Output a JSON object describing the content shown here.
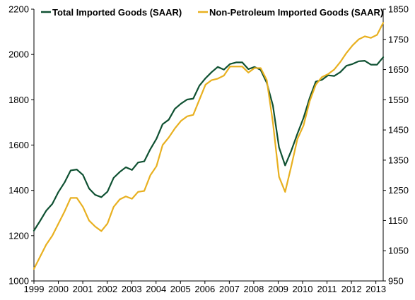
{
  "chart_data": {
    "type": "line",
    "legend_position": "top",
    "grid": false,
    "series": [
      {
        "name": "Total Imported Goods (SAAR)",
        "axis": "left",
        "color": "#0f5132",
        "values": [
          1222,
          1265,
          1310,
          1340,
          1393,
          1435,
          1488,
          1492,
          1468,
          1408,
          1380,
          1370,
          1394,
          1455,
          1481,
          1502,
          1490,
          1523,
          1528,
          1582,
          1628,
          1692,
          1712,
          1760,
          1783,
          1801,
          1805,
          1862,
          1895,
          1922,
          1945,
          1933,
          1958,
          1965,
          1965,
          1935,
          1945,
          1932,
          1875,
          1775,
          1590,
          1510,
          1575,
          1650,
          1720,
          1808,
          1880,
          1888,
          1908,
          1905,
          1922,
          1950,
          1958,
          1970,
          1972,
          1955,
          1955,
          1988
        ]
      },
      {
        "name": "Non-Petroleum Imported Goods (SAAR)",
        "axis": "right",
        "color": "#e8b020",
        "values": [
          990,
          1030,
          1070,
          1100,
          1140,
          1180,
          1225,
          1225,
          1195,
          1150,
          1130,
          1115,
          1140,
          1195,
          1220,
          1230,
          1222,
          1245,
          1248,
          1300,
          1330,
          1400,
          1425,
          1455,
          1480,
          1495,
          1500,
          1550,
          1600,
          1615,
          1620,
          1630,
          1660,
          1660,
          1660,
          1640,
          1655,
          1655,
          1615,
          1475,
          1295,
          1245,
          1330,
          1420,
          1465,
          1545,
          1600,
          1625,
          1635,
          1650,
          1675,
          1705,
          1730,
          1750,
          1760,
          1755,
          1765,
          1805
        ]
      }
    ],
    "x_start_year": 1999,
    "x_end_year": 2013.3,
    "xticks": [
      "1999",
      "2000",
      "2001",
      "2002",
      "2003",
      "2004",
      "2005",
      "2006",
      "2007",
      "2008",
      "2009",
      "2010",
      "2011",
      "2012",
      "2013"
    ],
    "y_left": {
      "min": 1000,
      "max": 2200,
      "ticks": [
        "1000",
        "1200",
        "1400",
        "1600",
        "1800",
        "2000",
        "2200"
      ]
    },
    "y_right": {
      "min": 950,
      "max": 1850,
      "ticks": [
        "950",
        "1050",
        "1150",
        "1250",
        "1350",
        "1450",
        "1550",
        "1650",
        "1750",
        "1850"
      ]
    }
  }
}
